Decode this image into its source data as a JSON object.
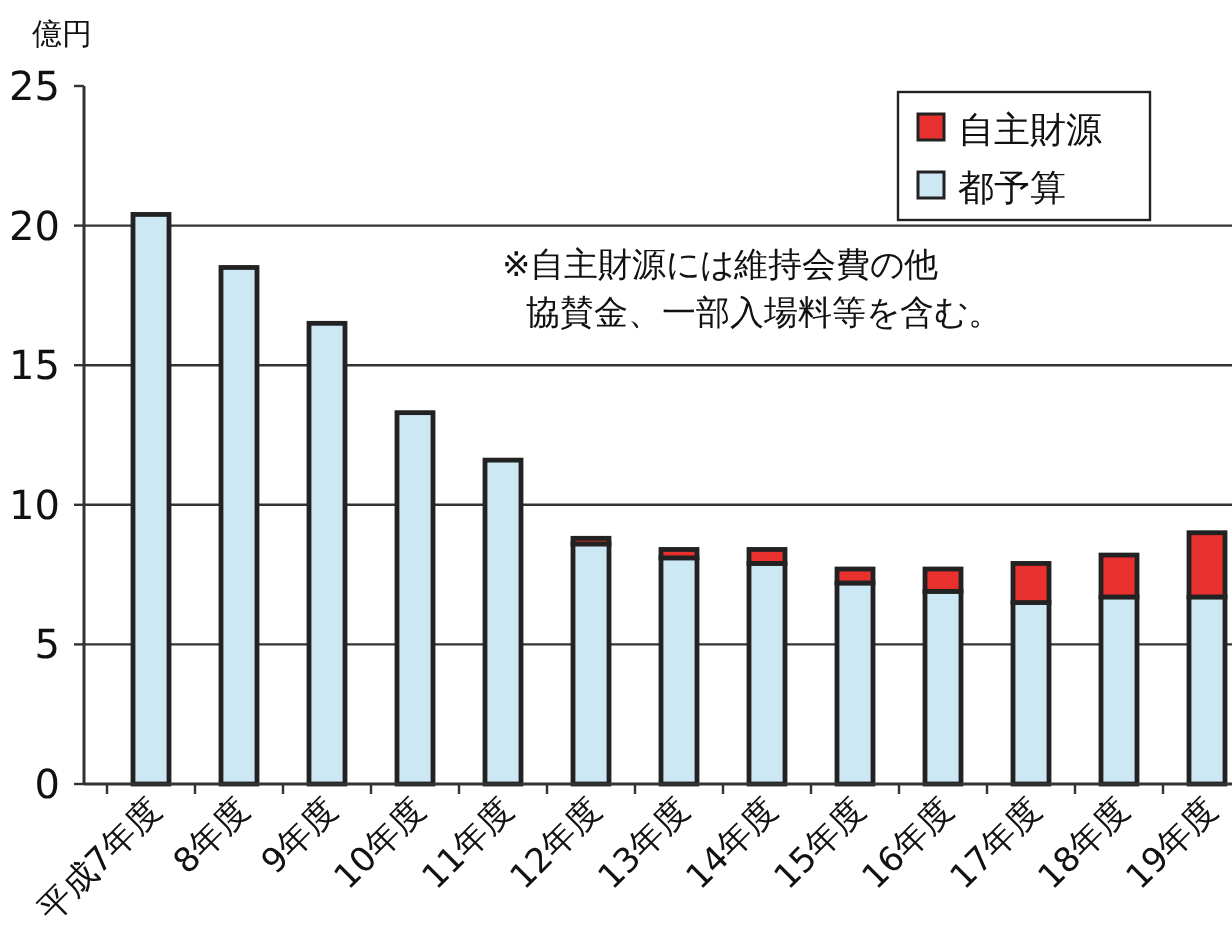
{
  "chart_data": {
    "type": "bar",
    "stacked": true,
    "ylabel": "億円",
    "categories": [
      "平成7年度",
      "8年度",
      "9年度",
      "10年度",
      "11年度",
      "12年度",
      "13年度",
      "14年度",
      "15年度",
      "16年度",
      "17年度",
      "18年度",
      "19年度"
    ],
    "series": [
      {
        "name": "都予算",
        "color": "#cce8f4",
        "values": [
          20.4,
          18.5,
          16.5,
          13.3,
          11.6,
          8.6,
          8.1,
          7.9,
          7.2,
          6.9,
          6.5,
          6.7,
          6.7
        ]
      },
      {
        "name": "自主財源",
        "color": "#e8302e",
        "values": [
          null,
          null,
          null,
          null,
          null,
          0.2,
          0.3,
          0.5,
          0.5,
          0.8,
          1.4,
          1.5,
          2.3
        ]
      }
    ],
    "ylim": [
      0,
      25
    ],
    "yticks": [
      0,
      5,
      10,
      15,
      20,
      25
    ],
    "grid": "y",
    "legend": "top right",
    "annotations": [
      "※自主財源には維持会費の他",
      "協賛金、一部入場料等を含む。"
    ]
  }
}
